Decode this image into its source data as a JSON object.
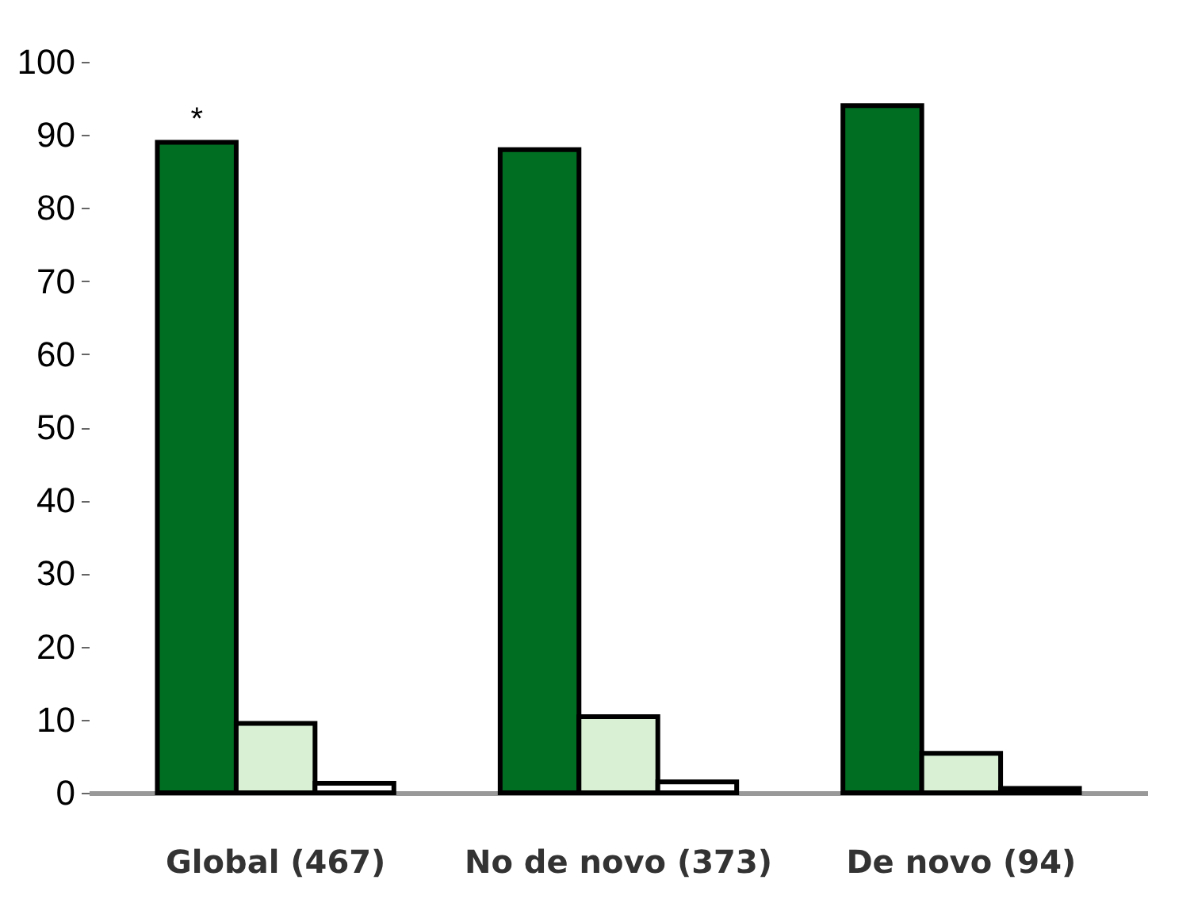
{
  "chart_data": {
    "type": "bar",
    "categories": [
      "Global (467)",
      "No de novo (373)",
      "De novo (94)"
    ],
    "series": [
      {
        "color": "#006e22",
        "values": [
          89,
          88,
          94
        ]
      },
      {
        "color": "#d9f0d5",
        "values": [
          9.5,
          10.4,
          5.4
        ]
      },
      {
        "color": "#ffffff",
        "values": [
          1.3,
          1.5,
          0.6
        ]
      }
    ],
    "ylim": [
      0,
      100
    ],
    "yticks": [
      0,
      10,
      20,
      30,
      40,
      50,
      60,
      70,
      80,
      90,
      100
    ],
    "grid": false,
    "annotations": [
      "*"
    ]
  }
}
